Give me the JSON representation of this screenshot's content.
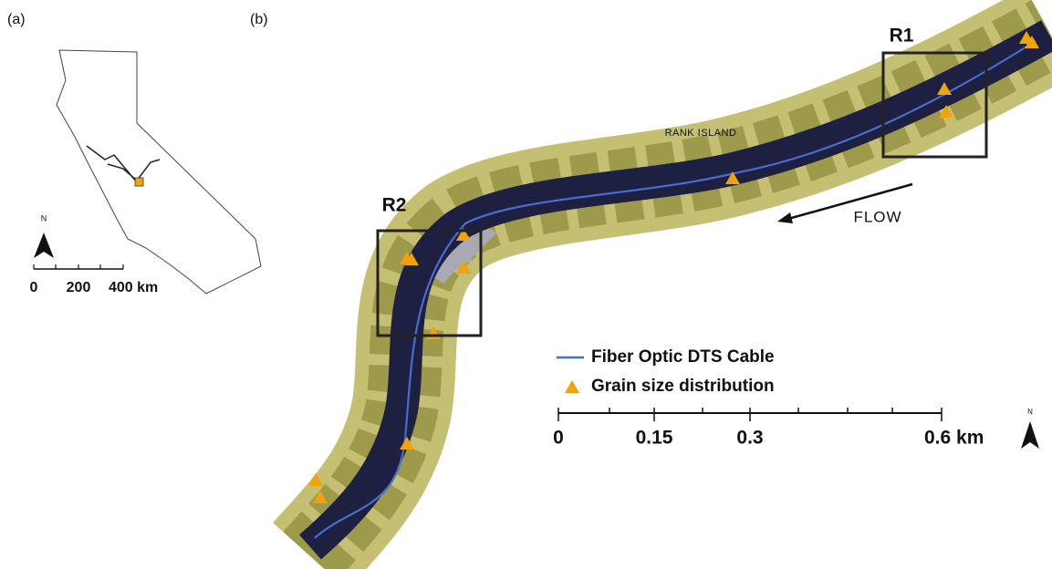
{
  "panel_a": {
    "label": "(a)",
    "north": "N",
    "scale": [
      "0",
      "200",
      "400 km"
    ]
  },
  "panel_b": {
    "label": "(b)",
    "reaches": [
      "R1",
      "R2"
    ],
    "place": "RANK ISLAND",
    "flow": "FLOW",
    "legend": [
      "Fiber Optic DTS Cable",
      "Grain size distribution"
    ],
    "north": "N",
    "scale": [
      "0",
      "0.15",
      "0.3",
      "0.6 km"
    ]
  }
}
